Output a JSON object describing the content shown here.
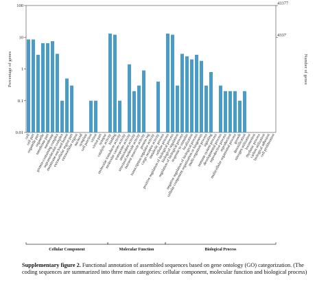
{
  "chart_data": {
    "type": "bar",
    "ylabel": "Percentage of genes",
    "ylabel_right": "Number of genes",
    "yscale": "log",
    "ylim": [
      0.01,
      100
    ],
    "yticks": [
      "100",
      "10",
      "1",
      "0.1",
      "0.01"
    ],
    "right_ticks": [
      "43377",
      "4337"
    ],
    "bar_color": "#4a9cc7",
    "groups": [
      {
        "name": "Cellular Component",
        "start": 0,
        "end": 16
      },
      {
        "name": "Molecular Function",
        "start": 17,
        "end": 28
      },
      {
        "name": "Biological Process",
        "start": 29,
        "end": 51
      }
    ],
    "categories": [
      "cell",
      "cell part",
      "organelle part",
      "organelle",
      "membrane part",
      "membrane",
      "protein-containing complex",
      "supramolecular complex",
      "membrane-enclosed lumen",
      "extracellular region part",
      "extracellular region",
      "nucleoid",
      "symplast",
      "cell junction",
      "virion",
      "virion part",
      "synapse",
      "catalytic activity",
      "binding",
      "molecular transducer activity",
      "molecular carrier activity",
      "transporter activity",
      "antioxidant activity",
      "structural molecule activity",
      "nutrient reservoir activity",
      "protein tag",
      "transcription regulator activity",
      "cargo receptor activity",
      "metabolic process",
      "cellular process",
      "positive regulation of biological process",
      "biological regulation",
      "regulation of biological process",
      "response to stimulus",
      "localization",
      "negative regulation of biological process",
      "cellular component organization or biogenesis",
      "multi-organism process",
      "signaling",
      "immune system process",
      "developmental process",
      "reproductive process",
      "reproduction",
      "multicellular organismal process",
      "growth",
      "detoxification",
      "nitrogen utilization",
      "locomotion",
      "rhythmic process",
      "carbon utilization",
      "biological adhesion",
      "cell proliferation"
    ],
    "values": [
      8.5,
      8.5,
      2.8,
      6.5,
      6.5,
      7.5,
      3.0,
      0.1,
      0.5,
      0.3,
      null,
      null,
      null,
      0.1,
      0.1,
      null,
      null,
      13,
      12,
      0.1,
      null,
      1.4,
      0.2,
      0.3,
      0.9,
      null,
      null,
      0.4,
      null,
      13,
      12,
      0.3,
      3.0,
      2.5,
      2.0,
      2.8,
      1.8,
      0.3,
      0.8,
      null,
      0.3,
      0.2,
      0.2,
      0.2,
      0.1,
      0.2,
      null,
      null,
      null,
      null,
      null,
      null
    ]
  },
  "caption": {
    "bold": "Supplementary figure 2.",
    "text": " Functional annotation of assembled sequences based on gene ontology (GO) categorization. (The coding sequences are summarized into three main categories: cellular component, molecular function and biological process)"
  }
}
